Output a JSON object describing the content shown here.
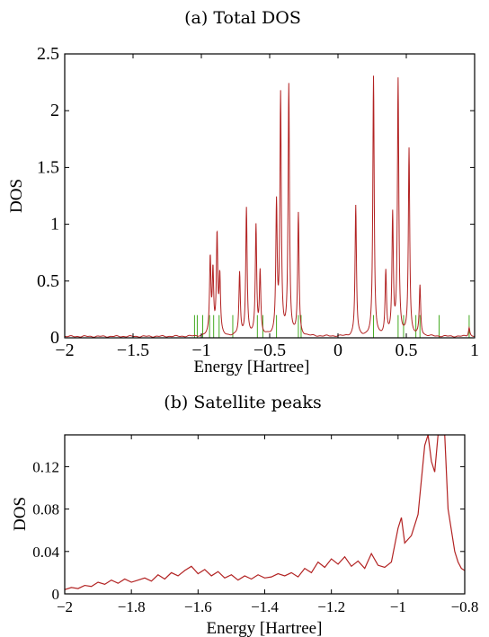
{
  "chart_data": [
    {
      "type": "line",
      "title": "(a) Total DOS",
      "xlabel": "Energy [Hartree]",
      "ylabel": "DOS",
      "xlim": [
        -2,
        1
      ],
      "ylim": [
        0,
        2.5
      ],
      "xticks": [
        -2,
        -1.5,
        -1,
        -0.5,
        0,
        0.5,
        1
      ],
      "xtick_labels": [
        "−2",
        "−1.5",
        "−1",
        "−0.5",
        "0",
        "0.5",
        "1"
      ],
      "yticks": [
        0,
        0.5,
        1,
        1.5,
        2,
        2.5
      ],
      "ytick_labels": [
        "0",
        "0.5",
        "1",
        "1.5",
        "2",
        "2.5"
      ],
      "grid": false,
      "series": [
        {
          "color": "#b22222",
          "style": "lorentzian-peaks",
          "baseline": 0.012,
          "peaks": [
            {
              "x": -0.935,
              "y": 0.67
            },
            {
              "x": -0.915,
              "y": 0.55
            },
            {
              "x": -0.885,
              "y": 0.87
            },
            {
              "x": -0.865,
              "y": 0.5
            },
            {
              "x": -0.72,
              "y": 0.55
            },
            {
              "x": -0.67,
              "y": 1.12
            },
            {
              "x": -0.6,
              "y": 0.96
            },
            {
              "x": -0.57,
              "y": 0.55
            },
            {
              "x": -0.45,
              "y": 1.14
            },
            {
              "x": -0.42,
              "y": 2.09
            },
            {
              "x": -0.36,
              "y": 2.2
            },
            {
              "x": -0.29,
              "y": 1.07
            },
            {
              "x": 0.13,
              "y": 1.15
            },
            {
              "x": 0.26,
              "y": 2.28
            },
            {
              "x": 0.35,
              "y": 0.55
            },
            {
              "x": 0.4,
              "y": 1.05
            },
            {
              "x": 0.44,
              "y": 2.24
            },
            {
              "x": 0.52,
              "y": 1.65
            },
            {
              "x": 0.6,
              "y": 0.44
            },
            {
              "x": 0.96,
              "y": 0.08
            }
          ]
        },
        {
          "color": "#44aa22",
          "style": "stick-lines",
          "x": [
            -1.05,
            -1.03,
            -0.99,
            -0.94,
            -0.91,
            -0.87,
            -0.77,
            -0.59,
            -0.55,
            -0.45,
            -0.29,
            -0.27,
            0.26,
            0.44,
            0.48,
            0.57,
            0.6,
            0.74,
            0.96
          ],
          "height": 0.2
        }
      ]
    },
    {
      "type": "line",
      "title": "(b) Satellite peaks",
      "xlabel": "Energy [Hartree]",
      "ylabel": "DOS",
      "xlim": [
        -2,
        -0.8
      ],
      "ylim": [
        0,
        0.15
      ],
      "xticks": [
        -2,
        -1.8,
        -1.6,
        -1.4,
        -1.2,
        -1,
        -0.8
      ],
      "xtick_labels": [
        "−2",
        "−1.8",
        "−1.6",
        "−1.4",
        "−1.2",
        "−1",
        "−0.8"
      ],
      "yticks": [
        0,
        0.04,
        0.08,
        0.12
      ],
      "ytick_labels": [
        "0",
        "0.04",
        "0.08",
        "0.12"
      ],
      "grid": false,
      "series": [
        {
          "color": "#b22222",
          "x": [
            -2.0,
            -1.98,
            -1.96,
            -1.94,
            -1.92,
            -1.9,
            -1.88,
            -1.86,
            -1.84,
            -1.82,
            -1.8,
            -1.78,
            -1.76,
            -1.74,
            -1.72,
            -1.7,
            -1.68,
            -1.66,
            -1.64,
            -1.62,
            -1.6,
            -1.58,
            -1.56,
            -1.54,
            -1.52,
            -1.5,
            -1.48,
            -1.46,
            -1.44,
            -1.42,
            -1.4,
            -1.38,
            -1.36,
            -1.34,
            -1.32,
            -1.3,
            -1.28,
            -1.26,
            -1.24,
            -1.22,
            -1.2,
            -1.18,
            -1.16,
            -1.14,
            -1.12,
            -1.1,
            -1.08,
            -1.06,
            -1.04,
            -1.02,
            -1.0,
            -0.99,
            -0.98,
            -0.96,
            -0.94,
            -0.92,
            -0.91,
            -0.9,
            -0.89,
            -0.88,
            -0.87,
            -0.86,
            -0.85,
            -0.84,
            -0.83,
            -0.82,
            -0.81,
            -0.8
          ],
          "y": [
            0.004,
            0.006,
            0.005,
            0.008,
            0.007,
            0.011,
            0.009,
            0.013,
            0.01,
            0.014,
            0.011,
            0.013,
            0.015,
            0.012,
            0.018,
            0.014,
            0.02,
            0.017,
            0.022,
            0.026,
            0.019,
            0.023,
            0.017,
            0.021,
            0.015,
            0.018,
            0.013,
            0.017,
            0.014,
            0.018,
            0.015,
            0.016,
            0.019,
            0.017,
            0.02,
            0.016,
            0.024,
            0.02,
            0.03,
            0.025,
            0.033,
            0.028,
            0.035,
            0.026,
            0.031,
            0.024,
            0.038,
            0.027,
            0.025,
            0.03,
            0.062,
            0.072,
            0.048,
            0.055,
            0.075,
            0.14,
            0.15,
            0.125,
            0.115,
            0.15,
            0.15,
            0.15,
            0.08,
            0.06,
            0.04,
            0.03,
            0.024,
            0.022
          ]
        }
      ]
    }
  ]
}
